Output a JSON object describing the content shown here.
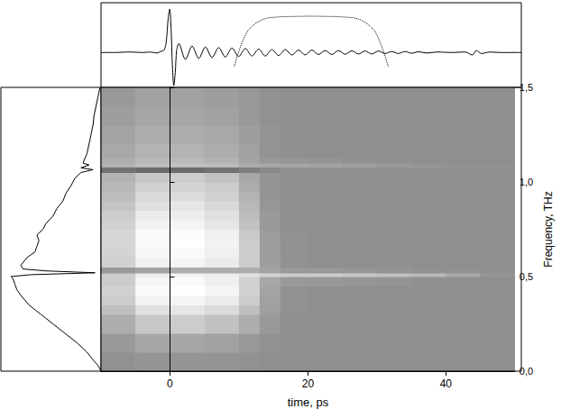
{
  "chart_data": [
    {
      "type": "line",
      "xlim": [
        -10,
        50
      ],
      "ylim": [
        -0.7,
        1
      ],
      "tick_labels": false,
      "series": [
        {
          "color": "#000000",
          "line_style": "solid",
          "x": [
            -10,
            -8,
            -6,
            -4,
            -3,
            -2,
            -1.5,
            -1,
            -0.7,
            -0.4,
            -0.2,
            0,
            0.2,
            0.4,
            0.6,
            0.8,
            1.1,
            2.05,
            3,
            3.95,
            4.9,
            5.85,
            6.8,
            7.75,
            8.7,
            9.65,
            10.6,
            11.55,
            12.5,
            13.45,
            14.4,
            15.35,
            16.3,
            17.25,
            18.2,
            19.15,
            20.1,
            21.05,
            22,
            22.95,
            23.9,
            24.85,
            25.8,
            26.75,
            27.7,
            28.65,
            29.6,
            30.55,
            31.5,
            32.45,
            33.4,
            34.35,
            35.3,
            36.5,
            38,
            40,
            42,
            43,
            43.6,
            44.3,
            45.5,
            47,
            50
          ],
          "values": [
            0,
            0,
            0.01,
            0,
            0.01,
            -0.01,
            0.02,
            0.05,
            0.2,
            0.7,
            0.87,
            0.5,
            -0.3,
            -0.66,
            -0.4,
            0.05,
            0.18,
            -0.14,
            0.13,
            -0.12,
            0.11,
            -0.1,
            0.1,
            -0.09,
            0.09,
            -0.08,
            0.08,
            -0.07,
            0.07,
            -0.07,
            0.06,
            -0.06,
            0.06,
            -0.05,
            0.05,
            -0.05,
            0.05,
            -0.04,
            0.04,
            -0.04,
            0.04,
            -0.035,
            0.035,
            -0.03,
            0.03,
            -0.03,
            0.03,
            -0.02,
            0.02,
            -0.02,
            0.02,
            -0.015,
            0.015,
            -0.01,
            0.01,
            0,
            0.01,
            -0.05,
            0.04,
            -0.02,
            0.01,
            0,
            0
          ]
        },
        {
          "color": "#000000",
          "line_style": "dotted",
          "x": [
            9,
            9.5,
            10,
            10.5,
            11,
            12,
            13,
            14,
            16,
            20,
            24,
            26,
            27,
            28,
            29,
            29.5,
            30,
            30.5,
            31
          ],
          "values": [
            -0.28,
            -0.05,
            0.15,
            0.32,
            0.45,
            0.58,
            0.66,
            0.7,
            0.72,
            0.73,
            0.72,
            0.7,
            0.66,
            0.58,
            0.45,
            0.32,
            0.15,
            -0.05,
            -0.28
          ]
        }
      ]
    },
    {
      "type": "heatmap",
      "x_label": "time, ps",
      "y_label": "Frequency, THz",
      "xlim": [
        -10,
        50
      ],
      "ylim": [
        0,
        1.5
      ],
      "xticks": [
        0,
        20,
        40
      ],
      "yticks": [
        {
          "value": 0,
          "label": "0,0"
        },
        {
          "value": 0.5,
          "label": "0,5"
        },
        {
          "value": 1,
          "label": "1,0"
        },
        {
          "value": 1.5,
          "label": "1,5"
        }
      ],
      "zlim": [
        0,
        1
      ],
      "time_edges": [
        -10,
        -5,
        0,
        5,
        10,
        13,
        16,
        20,
        25,
        30,
        35,
        40,
        45,
        50
      ],
      "freq_edges": [
        0,
        0.1,
        0.2,
        0.3,
        0.35,
        0.4,
        0.45,
        0.5,
        0.52,
        0.55,
        0.6,
        0.65,
        0.7,
        0.75,
        0.8,
        0.85,
        0.9,
        0.95,
        1.0,
        1.05,
        1.08,
        1.1,
        1.13,
        1.2,
        1.3,
        1.4,
        1.5
      ],
      "cells": [
        [
          0.57,
          0.58,
          0.58,
          0.58,
          0.57,
          0.56,
          0.56,
          0.56,
          0.56,
          0.56,
          0.56,
          0.56,
          0.56
        ],
        [
          0.6,
          0.65,
          0.65,
          0.63,
          0.6,
          0.57,
          0.56,
          0.56,
          0.56,
          0.56,
          0.56,
          0.56,
          0.56
        ],
        [
          0.68,
          0.78,
          0.8,
          0.76,
          0.68,
          0.6,
          0.56,
          0.56,
          0.56,
          0.56,
          0.56,
          0.56,
          0.56
        ],
        [
          0.75,
          0.88,
          0.9,
          0.86,
          0.75,
          0.62,
          0.57,
          0.56,
          0.56,
          0.56,
          0.56,
          0.56,
          0.56
        ],
        [
          0.8,
          0.95,
          0.96,
          0.92,
          0.8,
          0.63,
          0.57,
          0.56,
          0.56,
          0.56,
          0.56,
          0.56,
          0.56
        ],
        [
          0.82,
          0.98,
          1,
          0.96,
          0.82,
          0.64,
          0.57,
          0.56,
          0.56,
          0.56,
          0.56,
          0.56,
          0.56
        ],
        [
          0.8,
          0.96,
          0.98,
          0.94,
          0.82,
          0.66,
          0.6,
          0.6,
          0.59,
          0.58,
          0.57,
          0.56,
          0.56
        ],
        [
          0.8,
          0.92,
          0.95,
          0.93,
          0.88,
          0.82,
          0.8,
          0.8,
          0.78,
          0.75,
          0.72,
          0.66,
          0.58
        ],
        [
          0.6,
          0.64,
          0.68,
          0.68,
          0.68,
          0.64,
          0.6,
          0.6,
          0.59,
          0.58,
          0.57,
          0.57,
          0.56
        ],
        [
          0.82,
          0.95,
          0.96,
          0.92,
          0.8,
          0.62,
          0.57,
          0.56,
          0.56,
          0.56,
          0.56,
          0.56,
          0.56
        ],
        [
          0.83,
          0.97,
          0.98,
          0.94,
          0.8,
          0.62,
          0.57,
          0.56,
          0.56,
          0.56,
          0.56,
          0.56,
          0.56
        ],
        [
          0.84,
          0.98,
          1,
          0.95,
          0.8,
          0.62,
          0.57,
          0.56,
          0.56,
          0.56,
          0.56,
          0.56,
          0.56
        ],
        [
          0.84,
          0.98,
          0.99,
          0.94,
          0.79,
          0.61,
          0.57,
          0.56,
          0.56,
          0.56,
          0.56,
          0.56,
          0.56
        ],
        [
          0.82,
          0.95,
          0.96,
          0.9,
          0.76,
          0.6,
          0.56,
          0.56,
          0.56,
          0.56,
          0.56,
          0.56,
          0.56
        ],
        [
          0.8,
          0.92,
          0.93,
          0.88,
          0.74,
          0.6,
          0.56,
          0.56,
          0.56,
          0.56,
          0.56,
          0.56,
          0.56
        ],
        [
          0.77,
          0.88,
          0.9,
          0.85,
          0.72,
          0.59,
          0.56,
          0.56,
          0.56,
          0.56,
          0.56,
          0.56,
          0.56
        ],
        [
          0.74,
          0.85,
          0.86,
          0.82,
          0.7,
          0.58,
          0.56,
          0.56,
          0.56,
          0.56,
          0.56,
          0.56,
          0.56
        ],
        [
          0.72,
          0.82,
          0.83,
          0.8,
          0.68,
          0.58,
          0.56,
          0.56,
          0.56,
          0.56,
          0.56,
          0.56,
          0.56
        ],
        [
          0.7,
          0.78,
          0.8,
          0.76,
          0.66,
          0.58,
          0.56,
          0.56,
          0.56,
          0.56,
          0.56,
          0.56,
          0.56
        ],
        [
          0.45,
          0.42,
          0.42,
          0.45,
          0.5,
          0.54,
          0.56,
          0.56,
          0.56,
          0.56,
          0.56,
          0.56,
          0.56
        ],
        [
          0.7,
          0.75,
          0.76,
          0.74,
          0.68,
          0.66,
          0.65,
          0.64,
          0.62,
          0.6,
          0.58,
          0.57,
          0.56
        ],
        [
          0.68,
          0.72,
          0.73,
          0.7,
          0.64,
          0.6,
          0.59,
          0.58,
          0.57,
          0.56,
          0.56,
          0.56,
          0.56
        ],
        [
          0.66,
          0.7,
          0.7,
          0.68,
          0.63,
          0.58,
          0.56,
          0.56,
          0.56,
          0.56,
          0.56,
          0.56,
          0.56
        ],
        [
          0.64,
          0.68,
          0.68,
          0.66,
          0.62,
          0.58,
          0.56,
          0.56,
          0.56,
          0.56,
          0.56,
          0.56,
          0.56
        ],
        [
          0.62,
          0.65,
          0.65,
          0.63,
          0.6,
          0.57,
          0.56,
          0.56,
          0.56,
          0.56,
          0.56,
          0.56,
          0.56
        ],
        [
          0.6,
          0.63,
          0.63,
          0.62,
          0.6,
          0.57,
          0.56,
          0.56,
          0.56,
          0.56,
          0.56,
          0.56,
          0.56
        ]
      ]
    },
    {
      "type": "line",
      "orientation": "horizontal",
      "xlim": [
        0,
        1.5
      ],
      "ylim": [
        0,
        1
      ],
      "tick_labels": false,
      "color": "#000000",
      "x": [
        0,
        0.03,
        0.06,
        0.1,
        0.15,
        0.2,
        0.25,
        0.3,
        0.35,
        0.4,
        0.43,
        0.46,
        0.49,
        0.5,
        0.51,
        0.52,
        0.53,
        0.54,
        0.56,
        0.6,
        0.63,
        0.66,
        0.69,
        0.72,
        0.75,
        0.78,
        0.82,
        0.86,
        0.9,
        0.94,
        0.98,
        1.02,
        1.05,
        1.065,
        1.075,
        1.09,
        1.1,
        1.15,
        1.2,
        1.25,
        1.3,
        1.35,
        1.4,
        1.45,
        1.5
      ],
      "values": [
        0,
        0.03,
        0.08,
        0.14,
        0.24,
        0.36,
        0.48,
        0.6,
        0.72,
        0.8,
        0.84,
        0.86,
        0.88,
        0.9,
        0.7,
        0.06,
        0.55,
        0.78,
        0.8,
        0.74,
        0.66,
        0.64,
        0.62,
        0.64,
        0.58,
        0.55,
        0.48,
        0.44,
        0.38,
        0.35,
        0.3,
        0.26,
        0.2,
        0.08,
        0.2,
        0.12,
        0.18,
        0.14,
        0.12,
        0.1,
        0.08,
        0.07,
        0.05,
        0.03,
        0.01
      ]
    }
  ]
}
